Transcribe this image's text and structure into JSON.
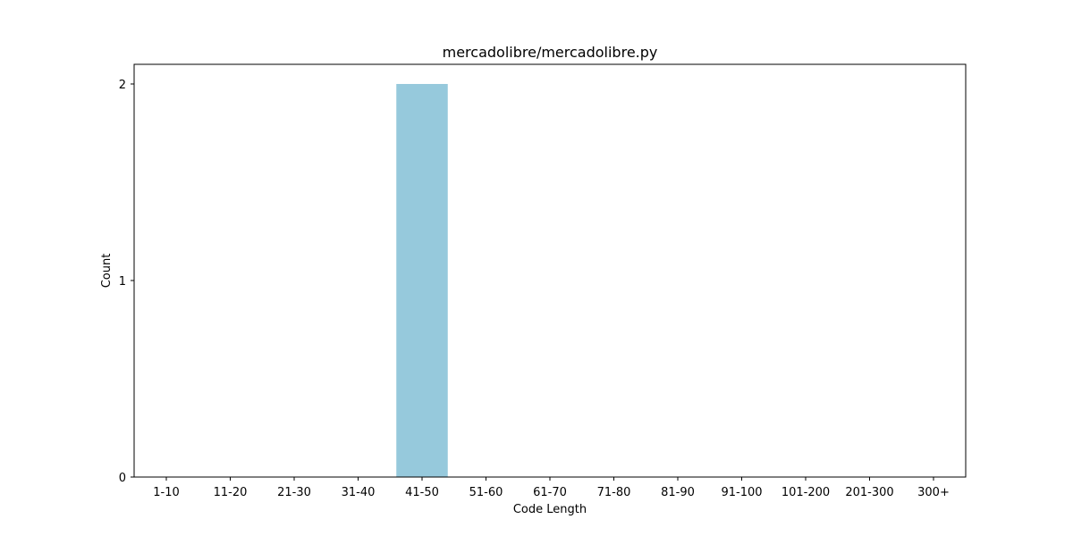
{
  "chart_data": {
    "type": "bar",
    "title": "mercadolibre/mercadolibre.py",
    "xlabel": "Code Length",
    "ylabel": "Count",
    "categories": [
      "1-10",
      "11-20",
      "21-30",
      "31-40",
      "41-50",
      "51-60",
      "61-70",
      "71-80",
      "81-90",
      "91-100",
      "101-200",
      "201-300",
      "300+"
    ],
    "values": [
      0,
      0,
      0,
      0,
      2,
      0,
      0,
      0,
      0,
      0,
      0,
      0,
      0
    ],
    "yticks": [
      0,
      1,
      2
    ],
    "ylim": [
      0,
      2.1
    ],
    "bar_color": "#96c9dc",
    "grid": false,
    "legend": "none"
  }
}
